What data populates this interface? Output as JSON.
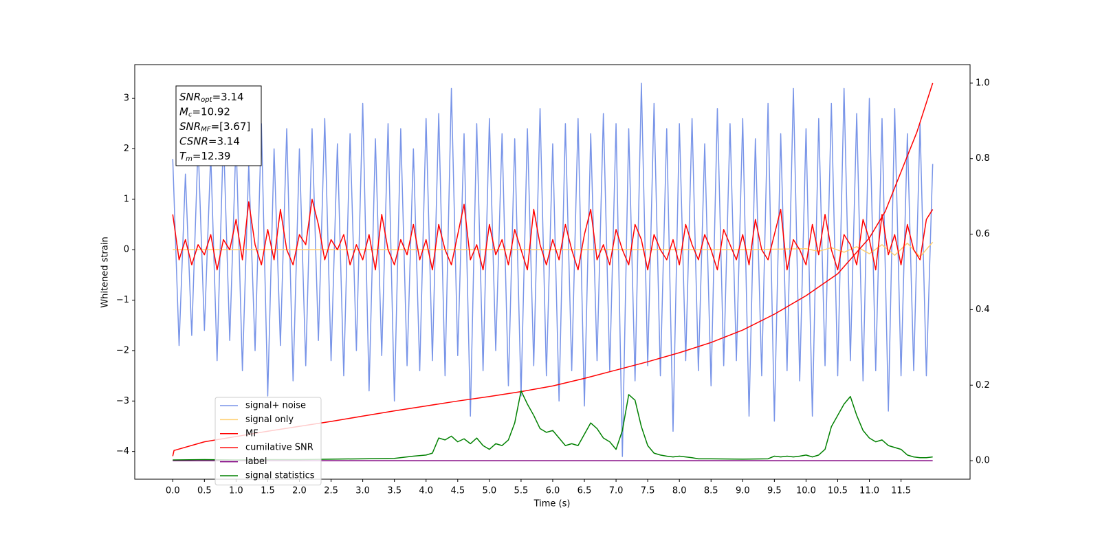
{
  "chart_data": {
    "type": "line",
    "xlabel": "Time (s)",
    "ylabel": "Whitened strain",
    "xlim": [
      -0.6,
      12.59
    ],
    "ylim": [
      -4.55,
      3.67
    ],
    "y2lim": [
      -0.049,
      1.049
    ],
    "xticks": [
      {
        "value": 0,
        "label": "0.0"
      },
      0.5,
      {
        "value": 1,
        "label": "1.0"
      },
      1.5,
      {
        "value": 2,
        "label": "2.0"
      },
      2.5,
      {
        "value": 3,
        "label": "3.0"
      },
      3.5,
      {
        "value": 4,
        "label": "4.0"
      },
      4.5,
      {
        "value": 5,
        "label": "5.0"
      },
      5.5,
      {
        "value": 6,
        "label": "6.0"
      },
      6.5,
      {
        "value": 7,
        "label": "7.0"
      },
      7.5,
      {
        "value": 8,
        "label": "8.0"
      },
      8.5,
      {
        "value": 9,
        "label": "9.0"
      },
      9.5,
      {
        "value": 10,
        "label": "10.0"
      },
      10.5,
      {
        "value": 11,
        "label": "11.0"
      },
      11.5
    ],
    "yticks": [
      {
        "value": -4,
        "label": "−4"
      },
      {
        "value": -3,
        "label": "−3"
      },
      {
        "value": -2,
        "label": "−2"
      },
      {
        "value": -1,
        "label": "−1"
      },
      0,
      1,
      2,
      3
    ],
    "y2ticks": [
      {
        "value": 0,
        "label": "0.0"
      },
      0.2,
      0.4,
      0.6,
      0.8,
      {
        "value": 1,
        "label": "1.0"
      }
    ],
    "legend": "lower left",
    "annotations": [
      {
        "symbol": "SNR",
        "sub": "opt",
        "text": "=3.14"
      },
      {
        "symbol": "M",
        "sub": "c",
        "text": "=10.92"
      },
      {
        "symbol": "SNR",
        "sub": "MF",
        "text": "=[3.67]"
      },
      {
        "symbol": "CSNR",
        "sub": "",
        "text": "=3.14"
      },
      {
        "symbol": "T",
        "sub": "m",
        "text": "=12.39"
      }
    ],
    "series": [
      {
        "name": "signal+ noise",
        "color": "#7894e8",
        "axis": "y",
        "x": [
          0,
          0.1,
          0.2,
          0.3,
          0.4,
          0.5,
          0.6,
          0.7,
          0.8,
          0.9,
          1,
          1.1,
          1.2,
          1.3,
          1.4,
          1.5,
          1.6,
          1.7,
          1.8,
          1.9,
          2,
          2.1,
          2.2,
          2.3,
          2.4,
          2.5,
          2.6,
          2.7,
          2.8,
          2.9,
          3,
          3.1,
          3.2,
          3.3,
          3.4,
          3.5,
          3.6,
          3.7,
          3.8,
          3.9,
          4,
          4.1,
          4.2,
          4.3,
          4.4,
          4.5,
          4.6,
          4.7,
          4.8,
          4.9,
          5,
          5.1,
          5.2,
          5.3,
          5.4,
          5.5,
          5.6,
          5.7,
          5.8,
          5.9,
          6,
          6.1,
          6.2,
          6.3,
          6.4,
          6.5,
          6.6,
          6.7,
          6.8,
          6.9,
          7,
          7.1,
          7.2,
          7.3,
          7.4,
          7.5,
          7.6,
          7.7,
          7.8,
          7.9,
          8,
          8.1,
          8.2,
          8.3,
          8.4,
          8.5,
          8.6,
          8.7,
          8.8,
          8.9,
          9,
          9.1,
          9.2,
          9.3,
          9.4,
          9.5,
          9.6,
          9.7,
          9.8,
          9.9,
          10,
          10.1,
          10.2,
          10.3,
          10.4,
          10.5,
          10.6,
          10.7,
          10.8,
          10.9,
          11,
          11.1,
          11.2,
          11.3,
          11.4,
          11.5,
          11.6,
          11.7,
          11.8,
          11.9,
          12
        ],
        "values": [
          1.8,
          -1.9,
          1.5,
          -1.7,
          2.1,
          -1.6,
          1.9,
          -2.2,
          2.3,
          -1.8,
          2.2,
          -2.4,
          1.7,
          -2.0,
          2.5,
          -2.9,
          2.0,
          -1.9,
          2.4,
          -2.6,
          2.0,
          -2.3,
          2.4,
          -1.8,
          2.6,
          -2.2,
          2.1,
          -2.5,
          2.3,
          -2.0,
          2.9,
          -2.8,
          2.2,
          -2.1,
          2.5,
          -3.0,
          2.4,
          -2.3,
          2.0,
          -2.4,
          2.6,
          -2.2,
          2.7,
          -2.5,
          3.2,
          -2.1,
          2.3,
          -3.3,
          2.5,
          -2.4,
          2.6,
          -2.0,
          2.3,
          -2.7,
          2.2,
          -2.9,
          2.4,
          -2.3,
          2.8,
          -2.5,
          2.1,
          -3.0,
          2.5,
          -2.4,
          2.6,
          -3.1,
          2.3,
          -2.2,
          2.7,
          -2.4,
          2.5,
          -4.1,
          2.4,
          -2.6,
          3.3,
          -2.3,
          2.9,
          -2.5,
          2.4,
          -3.6,
          2.5,
          -2.2,
          2.6,
          -2.4,
          2.1,
          -2.7,
          2.8,
          -2.3,
          2.5,
          -2.2,
          2.6,
          -3.3,
          2.2,
          -2.5,
          2.9,
          -3.4,
          2.3,
          -2.4,
          3.2,
          -2.6,
          2.4,
          -3.3,
          2.6,
          -2.3,
          2.9,
          -2.5,
          3.2,
          -2.2,
          2.7,
          -2.6,
          3.0,
          -2.4,
          2.6,
          -3.2,
          2.8,
          -2.5,
          2.3,
          -2.4,
          2.5,
          -2.5,
          1.7
        ]
      },
      {
        "name": "signal only",
        "color": "#ffcf70",
        "axis": "y",
        "x": [
          0,
          2,
          4,
          6,
          8,
          9,
          10,
          10.2,
          10.4,
          10.6,
          10.8,
          11,
          11.2,
          11.4,
          11.6,
          11.8,
          12
        ],
        "values": [
          0,
          0,
          0,
          0,
          0,
          0,
          0.02,
          -0.03,
          0.04,
          -0.05,
          0.06,
          -0.08,
          0.1,
          -0.11,
          0.13,
          -0.14,
          0.15
        ]
      },
      {
        "name": "MF",
        "color": "#ff0000",
        "axis": "y",
        "x": [
          0,
          0.1,
          0.2,
          0.3,
          0.4,
          0.5,
          0.6,
          0.7,
          0.8,
          0.9,
          1,
          1.1,
          1.2,
          1.3,
          1.4,
          1.5,
          1.6,
          1.7,
          1.8,
          1.9,
          2,
          2.1,
          2.2,
          2.3,
          2.4,
          2.5,
          2.6,
          2.7,
          2.8,
          2.9,
          3,
          3.1,
          3.2,
          3.3,
          3.4,
          3.5,
          3.6,
          3.7,
          3.8,
          3.9,
          4,
          4.1,
          4.2,
          4.3,
          4.4,
          4.5,
          4.6,
          4.7,
          4.8,
          4.9,
          5,
          5.1,
          5.2,
          5.3,
          5.4,
          5.5,
          5.6,
          5.7,
          5.8,
          5.9,
          6,
          6.1,
          6.2,
          6.3,
          6.4,
          6.5,
          6.6,
          6.7,
          6.8,
          6.9,
          7,
          7.1,
          7.2,
          7.3,
          7.4,
          7.5,
          7.6,
          7.7,
          7.8,
          7.9,
          8,
          8.1,
          8.2,
          8.3,
          8.4,
          8.5,
          8.6,
          8.7,
          8.8,
          8.9,
          9,
          9.1,
          9.2,
          9.3,
          9.4,
          9.5,
          9.6,
          9.7,
          9.8,
          9.9,
          10,
          10.1,
          10.2,
          10.3,
          10.4,
          10.5,
          10.6,
          10.7,
          10.8,
          10.9,
          11,
          11.1,
          11.2,
          11.3,
          11.4,
          11.5,
          11.6,
          11.7,
          11.8,
          11.9,
          12
        ],
        "values": [
          0.7,
          -0.2,
          0.2,
          -0.3,
          0.1,
          -0.1,
          0.3,
          -0.4,
          0.2,
          0.0,
          0.6,
          -0.2,
          0.95,
          0.1,
          -0.3,
          0.4,
          -0.2,
          0.8,
          0.0,
          -0.3,
          0.3,
          0.1,
          1.0,
          0.5,
          -0.2,
          0.2,
          0.0,
          0.3,
          -0.3,
          0.1,
          -0.2,
          0.3,
          -0.4,
          0.7,
          0.0,
          -0.3,
          0.2,
          -0.1,
          0.5,
          -0.2,
          0.2,
          -0.4,
          0.5,
          0.0,
          -0.3,
          0.3,
          0.9,
          -0.2,
          0.1,
          -0.4,
          0.5,
          -0.1,
          0.2,
          -0.3,
          0.4,
          0.0,
          -0.4,
          0.8,
          0.1,
          -0.3,
          0.2,
          -0.2,
          0.5,
          0.0,
          -0.4,
          0.3,
          0.8,
          -0.2,
          0.1,
          -0.3,
          0.4,
          0.0,
          -0.3,
          0.5,
          0.2,
          -0.4,
          0.3,
          0.0,
          -0.2,
          0.2,
          -0.3,
          0.5,
          0.1,
          -0.2,
          0.3,
          0.0,
          -0.4,
          0.4,
          0.1,
          -0.2,
          0.3,
          -0.3,
          0.6,
          0.0,
          -0.2,
          0.3,
          0.8,
          -0.4,
          0.2,
          0.0,
          -0.3,
          0.5,
          -0.1,
          0.7,
          0.0,
          -0.4,
          0.3,
          0.1,
          -0.3,
          0.6,
          0.2,
          -0.4,
          0.7,
          -0.1,
          0.3,
          -0.3,
          0.5,
          0.0,
          -0.2,
          0.6,
          0.8
        ]
      },
      {
        "name": "cumilative SNR",
        "color": "#ff0000",
        "axis": "y2",
        "x": [
          0,
          0.02,
          0.5,
          1,
          1.5,
          2,
          2.5,
          3,
          3.5,
          4,
          4.5,
          5,
          5.5,
          6,
          6.5,
          7,
          7.5,
          8,
          8.5,
          9,
          9.5,
          10,
          10.5,
          11,
          11.25,
          11.5,
          11.75,
          12
        ],
        "values": [
          0.012,
          0.027,
          0.05,
          0.064,
          0.078,
          0.091,
          0.104,
          0.118,
          0.132,
          0.145,
          0.158,
          0.17,
          0.183,
          0.198,
          0.218,
          0.24,
          0.262,
          0.286,
          0.313,
          0.346,
          0.388,
          0.437,
          0.495,
          0.59,
          0.66,
          0.765,
          0.87,
          1.0
        ]
      },
      {
        "name": "label",
        "color": "#800080",
        "axis": "y2",
        "x": [
          0,
          12
        ],
        "values": [
          0,
          0
        ]
      },
      {
        "name": "signal statistics",
        "color": "#008000",
        "axis": "y2",
        "x": [
          0,
          0.5,
          1,
          1.5,
          2,
          2.5,
          3,
          3.5,
          3.8,
          4.0,
          4.1,
          4.2,
          4.3,
          4.4,
          4.5,
          4.6,
          4.7,
          4.8,
          4.9,
          5.0,
          5.1,
          5.2,
          5.3,
          5.4,
          5.5,
          5.6,
          5.7,
          5.8,
          5.9,
          6.0,
          6.1,
          6.2,
          6.3,
          6.4,
          6.5,
          6.6,
          6.7,
          6.8,
          6.9,
          7.0,
          7.1,
          7.2,
          7.3,
          7.4,
          7.5,
          7.6,
          7.7,
          7.8,
          7.9,
          8.0,
          8.1,
          8.2,
          8.3,
          8.5,
          9.0,
          9.4,
          9.5,
          9.6,
          9.7,
          9.8,
          9.9,
          10.0,
          10.1,
          10.2,
          10.3,
          10.4,
          10.5,
          10.6,
          10.7,
          10.8,
          10.9,
          11.0,
          11.1,
          11.2,
          11.3,
          11.4,
          11.5,
          11.6,
          11.7,
          11.8,
          11.9,
          12.0
        ],
        "values": [
          0.002,
          0.003,
          0.002,
          0.003,
          0.003,
          0.004,
          0.005,
          0.006,
          0.012,
          0.015,
          0.02,
          0.06,
          0.055,
          0.065,
          0.05,
          0.058,
          0.045,
          0.06,
          0.04,
          0.03,
          0.045,
          0.04,
          0.055,
          0.1,
          0.185,
          0.15,
          0.12,
          0.085,
          0.075,
          0.08,
          0.06,
          0.04,
          0.045,
          0.04,
          0.07,
          0.1,
          0.085,
          0.06,
          0.05,
          0.03,
          0.08,
          0.175,
          0.16,
          0.09,
          0.04,
          0.02,
          0.015,
          0.012,
          0.01,
          0.012,
          0.01,
          0.008,
          0.005,
          0.005,
          0.004,
          0.005,
          0.012,
          0.01,
          0.012,
          0.01,
          0.012,
          0.015,
          0.01,
          0.015,
          0.03,
          0.09,
          0.12,
          0.15,
          0.17,
          0.12,
          0.08,
          0.06,
          0.05,
          0.055,
          0.04,
          0.035,
          0.03,
          0.015,
          0.01,
          0.008,
          0.008,
          0.01
        ]
      }
    ]
  }
}
